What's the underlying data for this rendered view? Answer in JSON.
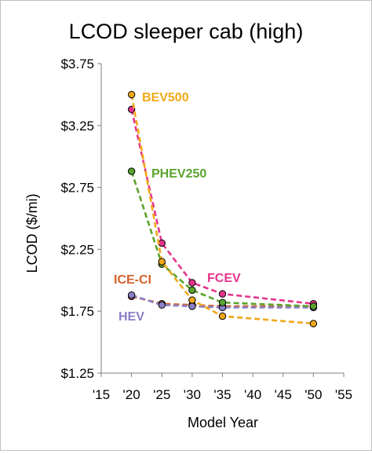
{
  "chart_data": {
    "type": "line",
    "title": "LCOD sleeper cab (high)",
    "xlabel": "Model Year",
    "ylabel": "LCOD ($/mi)",
    "xlim": [
      15,
      55
    ],
    "ylim": [
      1.25,
      3.75
    ],
    "x_ticks": [
      15,
      20,
      25,
      30,
      35,
      40,
      45,
      50,
      55
    ],
    "x_tick_labels": [
      "'15",
      "'20",
      "'25",
      "'30",
      "'35",
      "'40",
      "'45",
      "'50",
      "'55"
    ],
    "y_ticks": [
      1.25,
      1.75,
      2.25,
      2.75,
      3.25,
      3.75
    ],
    "y_tick_labels": [
      "$1.25",
      "$1.75",
      "$2.25",
      "$2.75",
      "$3.25",
      "$3.75"
    ],
    "grid": false,
    "legend": "inline labels",
    "series": [
      {
        "name": "ICE-CI",
        "color": "#d4622a",
        "x": [
          20,
          25,
          30,
          35,
          50
        ],
        "values": [
          1.87,
          1.81,
          1.8,
          1.79,
          1.79
        ]
      },
      {
        "name": "HEV",
        "color": "#8b7fc9",
        "x": [
          20,
          25,
          30,
          35,
          50
        ],
        "values": [
          1.88,
          1.8,
          1.79,
          1.78,
          1.78
        ]
      },
      {
        "name": "FCEV",
        "color": "#e6338c",
        "x": [
          20,
          25,
          30,
          35,
          50
        ],
        "values": [
          3.38,
          2.3,
          1.98,
          1.89,
          1.81
        ]
      },
      {
        "name": "PHEV250",
        "color": "#5aa42e",
        "x": [
          20,
          25,
          30,
          35,
          50
        ],
        "values": [
          2.88,
          2.13,
          1.92,
          1.82,
          1.79
        ]
      },
      {
        "name": "BEV500",
        "color": "#f0a818",
        "x": [
          20,
          25,
          30,
          35,
          50
        ],
        "values": [
          3.5,
          2.15,
          1.84,
          1.71,
          1.65
        ]
      }
    ]
  }
}
